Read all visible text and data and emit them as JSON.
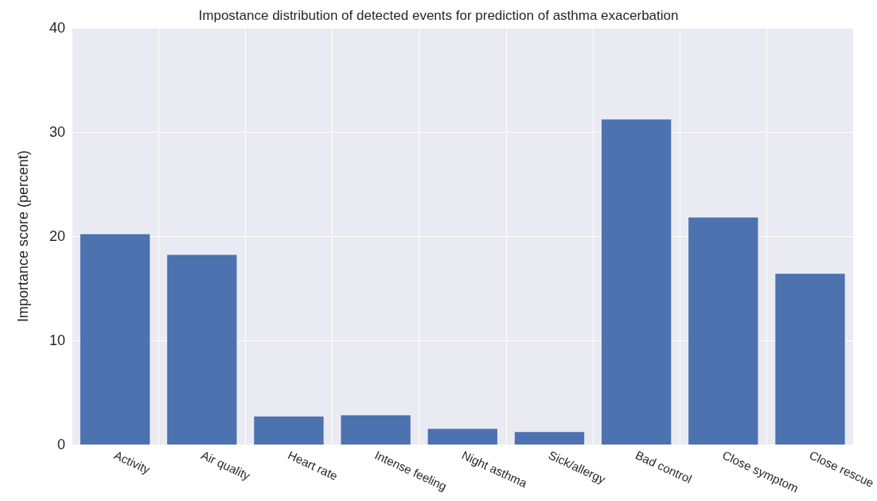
{
  "chart_data": {
    "type": "bar",
    "title": "Impostance distribution of detected events for prediction of asthma exacerbation",
    "ylabel": "Importance score (percent)",
    "categories": [
      "Activity",
      "Air quality",
      "Heart rate",
      "Intense feeling",
      "Night asthma",
      "Sick/allergy",
      "Bad control",
      "Close symptom",
      "Close rescue"
    ],
    "values": [
      20.2,
      18.2,
      2.7,
      2.8,
      1.5,
      1.2,
      31.2,
      21.8,
      16.4
    ],
    "color": "#4c72b0",
    "ylim": [
      0,
      40
    ],
    "yticks": [
      0,
      10,
      20,
      30,
      40
    ],
    "grid": true
  }
}
